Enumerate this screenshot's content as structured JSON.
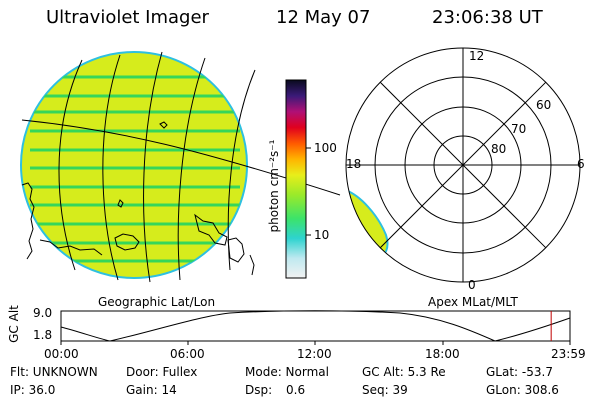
{
  "header": {
    "instrument": "Ultraviolet Imager",
    "date": "12 May 07",
    "time": "23:06:38 UT"
  },
  "panels": {
    "geo_label": "Geographic Lat/Lon",
    "apex_label": "Apex  MLat/MLT"
  },
  "colorbar": {
    "label": "photon cm⁻²s⁻¹",
    "ticks": [
      "100",
      "10"
    ]
  },
  "polar": {
    "mlt_labels": {
      "top": "12",
      "right": "6",
      "bottom": "0",
      "left": "18"
    },
    "lat_labels": [
      "60",
      "70",
      "80"
    ]
  },
  "alt_plot": {
    "ylabel": "GC Alt",
    "ymax": "9.0",
    "ymin": "1.8",
    "xticks": [
      "00:00",
      "06:00",
      "12:00",
      "18:00",
      "23:59"
    ],
    "current_marker_fraction": 0.963
  },
  "info": {
    "row1": {
      "flt": "Flt: UNKNOWN",
      "door": "Door: Fullex",
      "mode": "Mode: Normal",
      "gcalt": "GC Alt: 5.3 Re",
      "glat": "GLat: -53.7"
    },
    "row2": {
      "ip": "IP: 36.0",
      "gain": "Gain: 14",
      "dsp_label": "Dsp:",
      "dsp_value": "0.6",
      "seq": "Seq: 39",
      "glon": "GLon: 308.6"
    }
  },
  "colors": {
    "disk_fill": "#d6ec1c",
    "disk_stripe": "#35d65a",
    "disk_edge": "#2ec0e0",
    "marker": "#c00000"
  }
}
